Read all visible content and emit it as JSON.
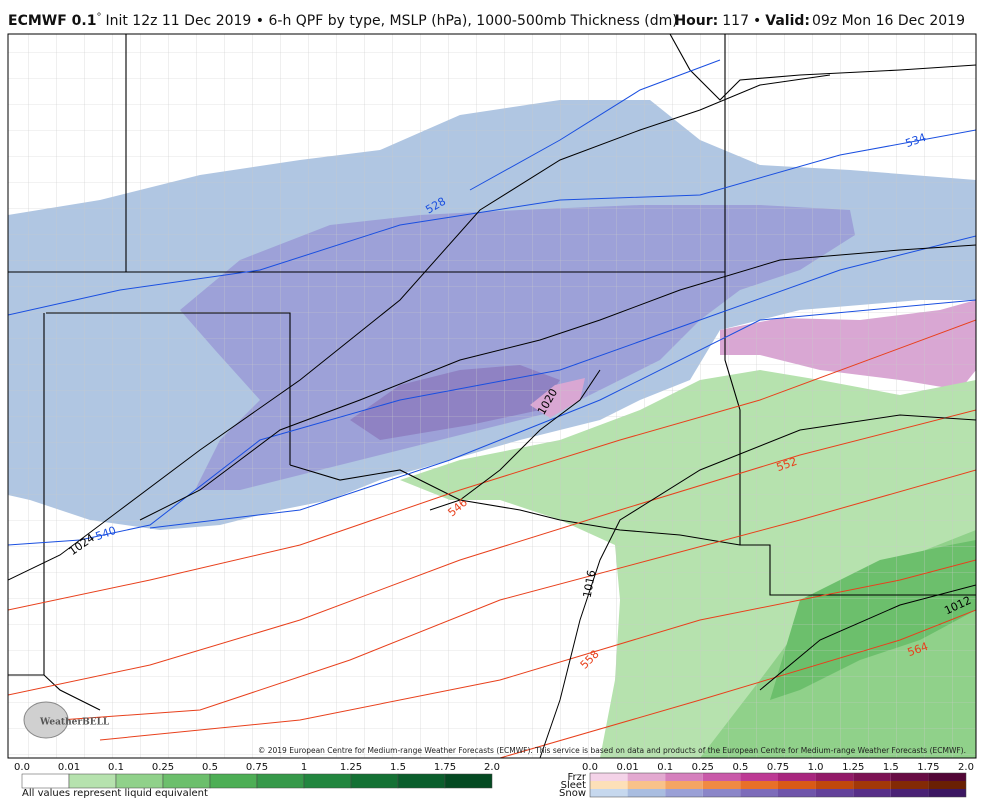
{
  "header": {
    "model": "ECMWF 0.1",
    "degree": "°",
    "description": "Init 12z 11 Dec 2019 • 6-h QPF by type, MSLP (hPa), 1000-500mb Thickness (dm)",
    "hour_label": "Hour:",
    "hour_value": "117",
    "separator": "•",
    "valid_label": "Valid:",
    "valid_value": "09z Mon 16 Dec 2019"
  },
  "map": {
    "contour_labels": [
      "534",
      "528",
      "540",
      "1024",
      "546",
      "1020",
      "552",
      "1016",
      "558",
      "564",
      "1012"
    ],
    "copyright": "© 2019 European Centre for Medium-range Weather Forecasts (ECMWF). This service is based on data and products of the European Centre for Medium-range Weather Forecasts (ECMWF).",
    "logo": "WeatherBELL"
  },
  "rain_legend": {
    "labels": [
      "0.0",
      "0.01",
      "0.1",
      "0.25",
      "0.5",
      "0.75",
      "1",
      "1.25",
      "1.5",
      "1.75",
      "2.0"
    ],
    "note": "All values represent liquid equivalent"
  },
  "type_legend": {
    "labels": [
      "0.0",
      "0.01",
      "0.1",
      "0.25",
      "0.5",
      "0.75",
      "1.0",
      "1.25",
      "1.5",
      "1.75",
      "2.0"
    ],
    "rows": [
      "Frzr",
      "Sleet",
      "Snow"
    ]
  }
}
